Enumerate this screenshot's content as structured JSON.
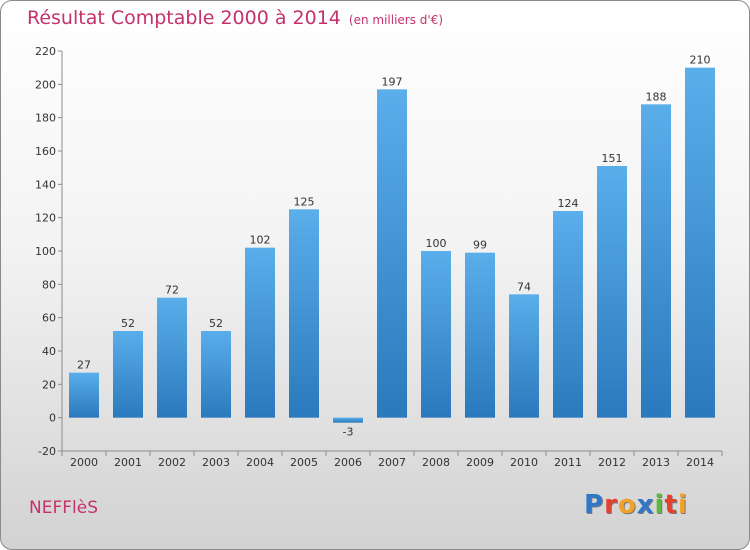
{
  "header": {
    "title": "Résultat Comptable 2000 à 2014",
    "subtitle": "(en milliers d'€)"
  },
  "footer": {
    "commune": "NEFFlèS",
    "logo_text": "Proxiti"
  },
  "colors": {
    "title": "#c4326b",
    "bar_light": "#5aaeea",
    "bar_dark": "#2a79bd",
    "logo": [
      "#2f78c8",
      "#e4412f",
      "#f1a328",
      "#2f78c8",
      "#5cb83c",
      "#e4412f",
      "#f1a328"
    ]
  },
  "chart_data": {
    "type": "bar",
    "title": "Résultat Comptable 2000 à 2014",
    "subtitle": "(en milliers d'€)",
    "categories": [
      "2000",
      "2001",
      "2002",
      "2003",
      "2004",
      "2005",
      "2006",
      "2007",
      "2008",
      "2009",
      "2010",
      "2011",
      "2012",
      "2013",
      "2014"
    ],
    "values": [
      27,
      52,
      72,
      52,
      102,
      125,
      -3,
      197,
      100,
      99,
      74,
      124,
      151,
      188,
      210
    ],
    "ylim": [
      -20,
      220
    ],
    "yticks": [
      -20,
      0,
      20,
      40,
      60,
      80,
      100,
      120,
      140,
      160,
      180,
      200,
      220
    ],
    "grid": false,
    "legend": "none",
    "data_labels": true
  }
}
